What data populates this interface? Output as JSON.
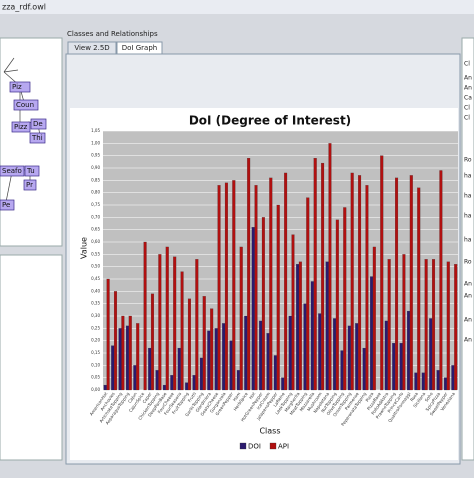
{
  "window": {
    "title": "zza_rdf.owl"
  },
  "left_panel": {
    "nodes": [
      "Piz",
      "Coun",
      "Pizz",
      "De",
      "Thi",
      "Seafo",
      "Tu",
      "Pr",
      "Pe"
    ]
  },
  "center_panel": {
    "title": "Classes and Relationships",
    "tabs": [
      "View 2.5D",
      "DoI Graph"
    ]
  },
  "right_panel": {
    "labels": [
      "Cl",
      "An",
      "An",
      "Ca",
      "Cl",
      "Cl",
      "Ro",
      "ha",
      "ha",
      "ha",
      "ha",
      "Ro",
      "An",
      "An",
      "An",
      "An"
    ]
  },
  "chart_data": {
    "type": "bar",
    "title": "DoI (Degree of Interest)",
    "x_label": "Class",
    "y_label": "Value",
    "categories": [
      "AmericanHot",
      "Anchovies",
      "ArtichokeTopping",
      "AsparagusTopping",
      "Cajun",
      "CajunSpice",
      "Caper",
      "ChickenTopping",
      "DeepPanBase",
      "FourCheese",
      "FourSeasons",
      "FruitTopping",
      "Frutti",
      "GarlicTopping",
      "Giardiniera",
      "GoatsCheese",
      "Gorgonzola",
      "GreenPepper",
      "Ham",
      "HerbSpice",
      "Hot",
      "HotGreenPepper",
      "IceCream",
      "JalapenoPepper",
      "LaReine",
      "LeekTopping",
      "Margherita",
      "MeatTopping",
      "Mozzarella",
      "Mushroom",
      "Napoletana",
      "NutTopping",
      "OliveTopping",
      "OnionTopping",
      "Parmense",
      "PeperonataTopping",
      "Pizza",
      "PizzaBase",
      "PolloAdAstra",
      "PrawnsTopping",
      "PrinceCarlo",
      "QuattroFormaggi",
      "Rosa",
      "Siciliana",
      "Soho",
      "SpicyPizza",
      "SweetPepper",
      "Veneziana"
    ],
    "series": [
      {
        "name": "DOI",
        "color": "#2b1a6e",
        "values": [
          0.02,
          0.18,
          0.25,
          0.26,
          0.1,
          0.0,
          0.17,
          0.08,
          0.02,
          0.06,
          0.17,
          0.03,
          0.06,
          0.13,
          0.24,
          0.25,
          0.27,
          0.2,
          0.08,
          0.3,
          0.66,
          0.28,
          0.23,
          0.14,
          0.05,
          0.3,
          0.51,
          0.35,
          0.44,
          0.31,
          0.52,
          0.29,
          0.16,
          0.26,
          0.27,
          0.17,
          0.46,
          0.0,
          0.28,
          0.19,
          0.19,
          0.32,
          0.07,
          0.07,
          0.29,
          0.08,
          0.05,
          0.1
        ]
      },
      {
        "name": "API",
        "color": "#b01010",
        "values": [
          0.45,
          0.4,
          0.3,
          0.3,
          0.27,
          0.6,
          0.39,
          0.55,
          0.58,
          0.54,
          0.48,
          0.37,
          0.53,
          0.38,
          0.33,
          0.83,
          0.84,
          0.85,
          0.58,
          0.94,
          0.83,
          0.7,
          0.86,
          0.75,
          0.88,
          0.63,
          0.52,
          0.78,
          0.94,
          0.92,
          1.0,
          0.69,
          0.74,
          0.88,
          0.87,
          0.83,
          0.58,
          0.95,
          0.53,
          0.86,
          0.55,
          0.87,
          0.82,
          0.53,
          0.53,
          0.89,
          0.52,
          0.51
        ]
      }
    ],
    "ylim": [
      0,
      1.05
    ],
    "yticks": [
      {
        "value": 0,
        "label": "0,00"
      },
      {
        "value": 0.05,
        "label": "0,05"
      },
      {
        "value": 0.1,
        "label": "0,10"
      },
      {
        "value": 0.15,
        "label": "0,15"
      },
      {
        "value": 0.2,
        "label": "0,20"
      },
      {
        "value": 0.25,
        "label": "0,25"
      },
      {
        "value": 0.3,
        "label": "0,30"
      },
      {
        "value": 0.35,
        "label": "0,35"
      },
      {
        "value": 0.4,
        "label": "0,40"
      },
      {
        "value": 0.45,
        "label": "0,45"
      },
      {
        "value": 0.5,
        "label": "0,50"
      },
      {
        "value": 0.55,
        "label": "0,55"
      },
      {
        "value": 0.6,
        "label": "0,60"
      },
      {
        "value": 0.65,
        "label": "0,65"
      },
      {
        "value": 0.7,
        "label": "0,70"
      },
      {
        "value": 0.75,
        "label": "0,75"
      },
      {
        "value": 0.8,
        "label": "0,80"
      },
      {
        "value": 0.85,
        "label": "0,85"
      },
      {
        "value": 0.9,
        "label": "0,90"
      },
      {
        "value": 0.95,
        "label": "0,95"
      },
      {
        "value": 1,
        "label": "1,00"
      },
      {
        "value": 1.05,
        "label": "1,05"
      }
    ],
    "grid": true,
    "legend": "bottom"
  }
}
